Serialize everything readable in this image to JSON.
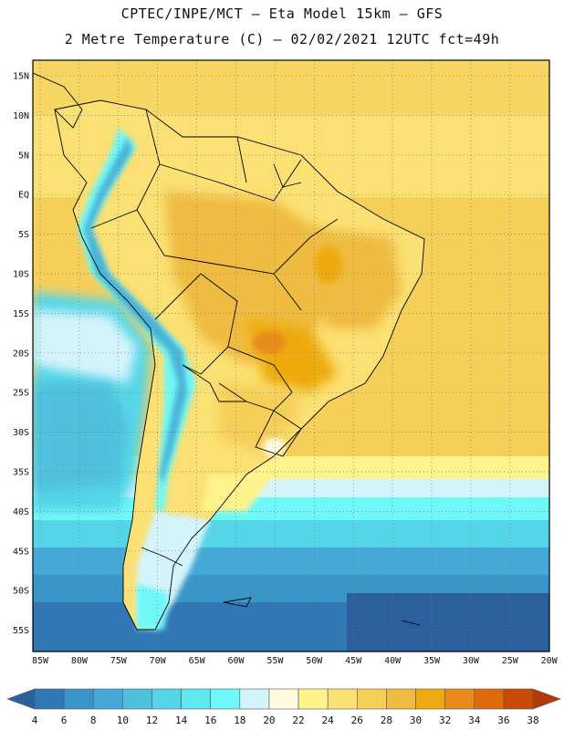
{
  "title": {
    "line1": "CPTEC/INPE/MCT –  Eta Model 15km – GFS",
    "line2": "2 Metre Temperature (C) – 02/02/2021 12UTC fct=49h"
  },
  "axes": {
    "lat_labels": [
      "15N",
      "10N",
      "5N",
      "EQ",
      "5S",
      "10S",
      "15S",
      "20S",
      "25S",
      "30S",
      "35S",
      "40S",
      "45S",
      "50S",
      "55S"
    ],
    "lon_labels": [
      "85W",
      "80W",
      "75W",
      "70W",
      "65W",
      "60W",
      "55W",
      "50W",
      "45W",
      "40W",
      "35W",
      "30W",
      "25W",
      "20W"
    ]
  },
  "colorbar": {
    "labels": [
      "4",
      "6",
      "8",
      "10",
      "12",
      "14",
      "16",
      "18",
      "20",
      "22",
      "24",
      "26",
      "28",
      "30",
      "32",
      "34",
      "36",
      "38"
    ],
    "colors": [
      "#2c5f9e",
      "#2f78b5",
      "#3a95c8",
      "#44a9d6",
      "#4fc1dd",
      "#55d6e8",
      "#60e8ef",
      "#6ff8f8",
      "#d4f4fb",
      "#fffbe0",
      "#fff38c",
      "#fbe073",
      "#f6cf59",
      "#efbb40",
      "#eeaa10",
      "#e88a1c",
      "#df6a0c",
      "#c84a06",
      "#b23a06"
    ]
  }
}
